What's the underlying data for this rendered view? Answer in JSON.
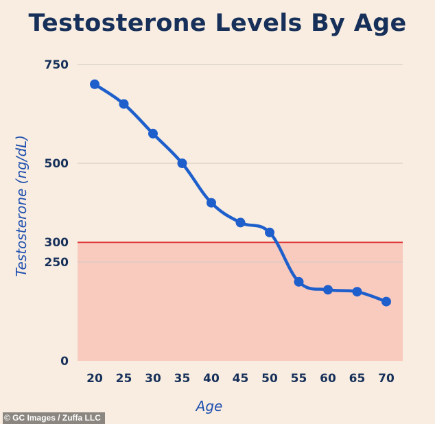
{
  "chart_data": {
    "type": "line",
    "title": "Testosterone Levels By Age",
    "xlabel": "Age",
    "ylabel": "Testosterone (ng/dL)",
    "x": [
      20,
      25,
      30,
      35,
      40,
      45,
      50,
      55,
      60,
      65,
      70
    ],
    "series": [
      {
        "values": [
          700,
          650,
          575,
          500,
          400,
          350,
          325,
          200,
          180,
          175,
          150
        ],
        "color": "#1f5fcc"
      }
    ],
    "xticks": [
      "20",
      "25",
      "30",
      "35",
      "40",
      "45",
      "50",
      "55",
      "60",
      "65",
      "70"
    ],
    "yticks": [
      0,
      250,
      300,
      500,
      750
    ],
    "ytick_labels": [
      "0",
      "250",
      "300",
      "500",
      "750"
    ],
    "ylim": [
      0,
      750
    ],
    "xlim": [
      17,
      73
    ],
    "grid": true,
    "threshold": {
      "value": 300,
      "line_color": "#e0393a",
      "fill_color": "#f9cbbf",
      "shaded": "below"
    }
  },
  "credit": "© GC Images / Zuffa LLC"
}
